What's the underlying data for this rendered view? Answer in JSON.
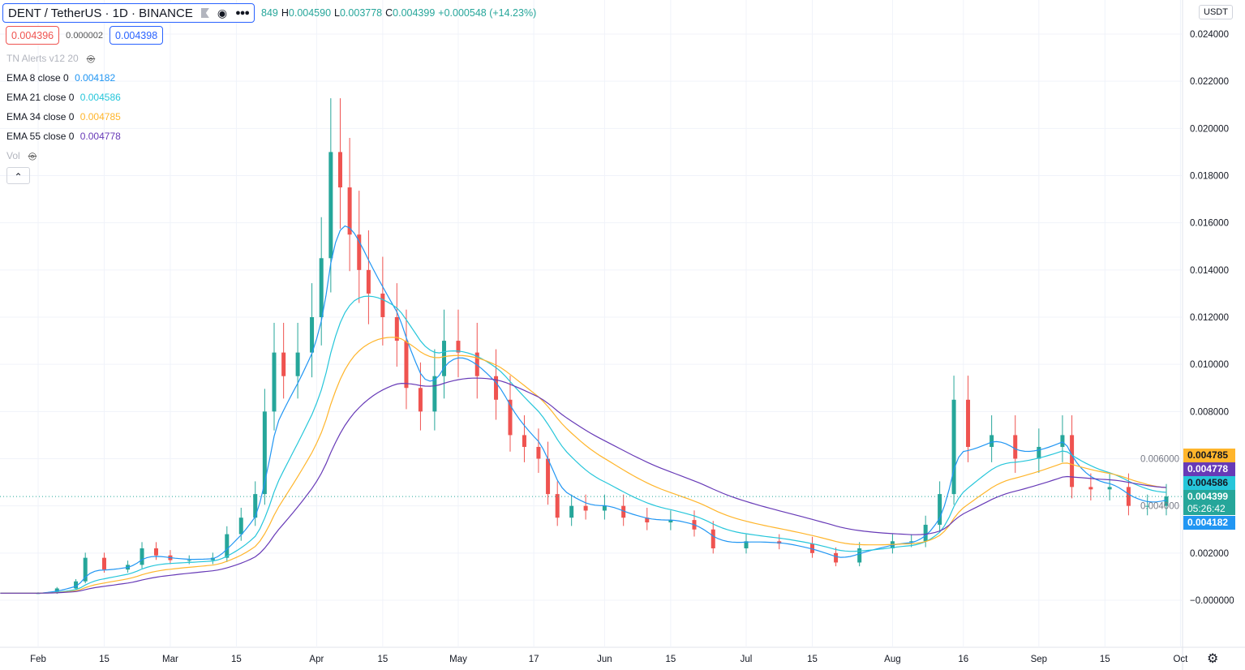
{
  "header": {
    "symbol": "DENT / TetherUS · 1D · BINANCE",
    "ohlc_open_partial": "849",
    "high_label": "H",
    "high": "0.004590",
    "low_label": "L",
    "low": "0.003778",
    "close_label": "C",
    "close": "0.004399",
    "change": "+0.000548 (+14.23%)",
    "bid": "0.004396",
    "spread": "0.000002",
    "ask": "0.004398",
    "currency": "USDT"
  },
  "indicators": [
    {
      "label": "TN Alerts v12 20",
      "hidden": true
    },
    {
      "label": "EMA 8 close 0",
      "value": "0.004182",
      "color": "#2196f3"
    },
    {
      "label": "EMA 21 close 0",
      "value": "0.004586",
      "color": "#26c6da"
    },
    {
      "label": "EMA 34 close 0",
      "value": "0.004785",
      "color": "#ffb52b"
    },
    {
      "label": "EMA 55 close 0",
      "value": "0.004778",
      "color": "#673ab7"
    },
    {
      "label": "Vol",
      "hidden": true
    }
  ],
  "price_labels": [
    {
      "value": "0.004785",
      "bg": "#ffb52b",
      "fg": "#131722"
    },
    {
      "value": "0.004778",
      "bg": "#673ab7",
      "fg": "#ffffff"
    },
    {
      "value": "0.004586",
      "bg": "#26c6da",
      "fg": "#131722"
    },
    {
      "value": "0.004399",
      "bg": "#26a69a",
      "fg": "#ffffff",
      "countdown": "05:26:42"
    },
    {
      "value": "0.004182",
      "bg": "#2196f3",
      "fg": "#ffffff"
    }
  ],
  "chart_data": {
    "type": "candlestick",
    "ylim": [
      -0.0001,
      0.0245
    ],
    "y_ticks": [
      "0.024000",
      "0.022000",
      "0.020000",
      "0.018000",
      "0.016000",
      "0.014000",
      "0.012000",
      "0.010000",
      "0.008000",
      "0.006000",
      "0.004000",
      "0.002000",
      "−0.000000"
    ],
    "x_ticks": [
      [
        "Feb",
        "2021-02-01"
      ],
      [
        "15",
        "2021-02-15"
      ],
      [
        "Mar",
        "2021-03-01"
      ],
      [
        "15",
        "2021-03-15"
      ],
      [
        "Apr",
        "2021-04-01"
      ],
      [
        "15",
        "2021-04-15"
      ],
      [
        "May",
        "2021-05-01"
      ],
      [
        "17",
        "2021-05-17"
      ],
      [
        "Jun",
        "2021-06-01"
      ],
      [
        "15",
        "2021-06-15"
      ],
      [
        "Jul",
        "2021-07-01"
      ],
      [
        "15",
        "2021-07-15"
      ],
      [
        "Aug",
        "2021-08-01"
      ],
      [
        "16",
        "2021-08-16"
      ],
      [
        "Sep",
        "2021-09-01"
      ],
      [
        "15",
        "2021-09-15"
      ],
      [
        "Oct",
        "2021-10-01"
      ]
    ],
    "up_color": "#26a69a",
    "down_color": "#ef5350",
    "closes": [
      [
        "2021-01-24",
        0.0003
      ],
      [
        "2021-02-01",
        0.0003
      ],
      [
        "2021-02-05",
        0.0005
      ],
      [
        "2021-02-09",
        0.0008
      ],
      [
        "2021-02-11",
        0.0018
      ],
      [
        "2021-02-15",
        0.0013
      ],
      [
        "2021-02-20",
        0.0015
      ],
      [
        "2021-02-23",
        0.0022
      ],
      [
        "2021-02-26",
        0.0019
      ],
      [
        "2021-03-01",
        0.0017
      ],
      [
        "2021-03-05",
        0.0017
      ],
      [
        "2021-03-10",
        0.0018
      ],
      [
        "2021-03-13",
        0.0028
      ],
      [
        "2021-03-16",
        0.0035
      ],
      [
        "2021-03-19",
        0.0045
      ],
      [
        "2021-03-21",
        0.008
      ],
      [
        "2021-03-23",
        0.0105
      ],
      [
        "2021-03-25",
        0.0095
      ],
      [
        "2021-03-28",
        0.0105
      ],
      [
        "2021-03-31",
        0.012
      ],
      [
        "2021-04-02",
        0.0145
      ],
      [
        "2021-04-04",
        0.019
      ],
      [
        "2021-04-06",
        0.0175
      ],
      [
        "2021-04-08",
        0.0155
      ],
      [
        "2021-04-10",
        0.014
      ],
      [
        "2021-04-12",
        0.013
      ],
      [
        "2021-04-15",
        0.012
      ],
      [
        "2021-04-18",
        0.011
      ],
      [
        "2021-04-20",
        0.009
      ],
      [
        "2021-04-23",
        0.008
      ],
      [
        "2021-04-26",
        0.0095
      ],
      [
        "2021-04-28",
        0.011
      ],
      [
        "2021-05-01",
        0.0105
      ],
      [
        "2021-05-05",
        0.0095
      ],
      [
        "2021-05-09",
        0.0085
      ],
      [
        "2021-05-12",
        0.007
      ],
      [
        "2021-05-15",
        0.0065
      ],
      [
        "2021-05-18",
        0.006
      ],
      [
        "2021-05-20",
        0.0045
      ],
      [
        "2021-05-22",
        0.0035
      ],
      [
        "2021-05-25",
        0.004
      ],
      [
        "2021-05-28",
        0.0038
      ],
      [
        "2021-06-01",
        0.004
      ],
      [
        "2021-06-05",
        0.0035
      ],
      [
        "2021-06-10",
        0.0033
      ],
      [
        "2021-06-15",
        0.0034
      ],
      [
        "2021-06-20",
        0.003
      ],
      [
        "2021-06-24",
        0.0022
      ],
      [
        "2021-07-01",
        0.0025
      ],
      [
        "2021-07-08",
        0.0024
      ],
      [
        "2021-07-15",
        0.002
      ],
      [
        "2021-07-20",
        0.0016
      ],
      [
        "2021-07-25",
        0.0022
      ],
      [
        "2021-08-01",
        0.0025
      ],
      [
        "2021-08-05",
        0.0025
      ],
      [
        "2021-08-08",
        0.0032
      ],
      [
        "2021-08-11",
        0.0045
      ],
      [
        "2021-08-14",
        0.0085
      ],
      [
        "2021-08-17",
        0.0065
      ],
      [
        "2021-08-22",
        0.007
      ],
      [
        "2021-08-27",
        0.006
      ],
      [
        "2021-09-01",
        0.0065
      ],
      [
        "2021-09-06",
        0.007
      ],
      [
        "2021-09-08",
        0.0048
      ],
      [
        "2021-09-12",
        0.0047
      ],
      [
        "2021-09-16",
        0.0048
      ],
      [
        "2021-09-20",
        0.004
      ],
      [
        "2021-09-24",
        0.004
      ],
      [
        "2021-09-28",
        0.0044
      ]
    ],
    "last_price": 0.004399
  }
}
